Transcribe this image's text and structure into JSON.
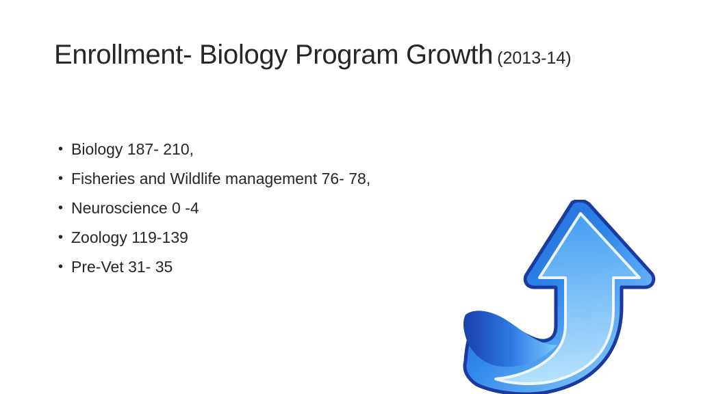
{
  "slide": {
    "title": "Enrollment- Biology Program Growth",
    "title_suffix": "(2013-14)",
    "bullets": [
      "Biology 187- 210,",
      "Fisheries and Wildlife management 76- 78,",
      "Neuroscience 0 -4",
      "Zoology 119-139",
      "Pre-Vet 31- 35"
    ],
    "bullet_glyph": "•",
    "image": {
      "name": "up-arrow-icon",
      "colors": {
        "dark_blue": "#1a3fa8",
        "mid_blue": "#2f7fe6",
        "light_blue": "#8fd3ff"
      }
    }
  }
}
